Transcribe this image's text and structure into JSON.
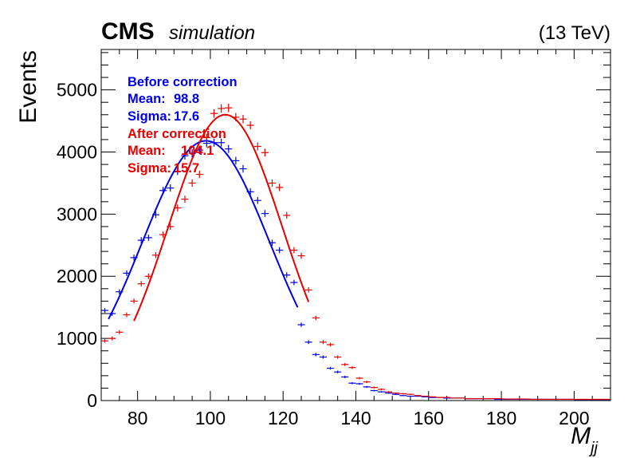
{
  "header": {
    "experiment": "CMS",
    "status": "simulation",
    "energy": "(13 TeV)"
  },
  "chart_data": {
    "type": "scatter",
    "xlabel": "M",
    "xlabel_sub": "jj",
    "ylabel": "Events",
    "xlim": [
      70,
      210
    ],
    "ylim": [
      0,
      5650
    ],
    "x_ticks": [
      80,
      100,
      120,
      140,
      160,
      180,
      200
    ],
    "y_ticks": [
      0,
      1000,
      2000,
      3000,
      4000,
      5000
    ],
    "bin_width": 2,
    "grid": false,
    "colors": {
      "before": "#0000e6",
      "after": "#e60000"
    },
    "series": [
      {
        "name": "Before correction",
        "color": "#0000e6",
        "stats": [
          {
            "label": "Before correction",
            "mean_label": "Mean:",
            "mean": "98.8",
            "sigma_label": "Sigma:",
            "sigma": "17.6"
          }
        ],
        "x": [
          71,
          73,
          75,
          77,
          79,
          81,
          83,
          85,
          87,
          89,
          91,
          93,
          95,
          97,
          99,
          101,
          103,
          105,
          107,
          109,
          111,
          113,
          115,
          117,
          119,
          121,
          123,
          125,
          127,
          129,
          131,
          133,
          135,
          137,
          139,
          141,
          143,
          145,
          147,
          149,
          151,
          153,
          155,
          157,
          159,
          161,
          163,
          165,
          167,
          169,
          171,
          173,
          175,
          177,
          179,
          181,
          183,
          185,
          187,
          189,
          191,
          193,
          195,
          197,
          199,
          201,
          203,
          205,
          207,
          209
        ],
        "y": [
          1450,
          1400,
          1750,
          2050,
          2300,
          2580,
          2620,
          2990,
          3380,
          3420,
          3690,
          3940,
          3980,
          4030,
          4140,
          4150,
          4150,
          4050,
          3860,
          3730,
          3360,
          3220,
          3010,
          2540,
          2420,
          2020,
          1900,
          1220,
          940,
          740,
          700,
          520,
          460,
          380,
          280,
          270,
          220,
          160,
          140,
          120,
          100,
          80,
          70,
          70,
          60,
          50,
          50,
          40,
          40,
          40,
          30,
          30,
          30,
          30,
          20,
          20,
          20,
          20,
          20,
          20,
          20,
          20,
          20,
          20,
          20,
          15,
          15,
          15,
          15,
          15
        ],
        "fit": {
          "mean": 98.8,
          "sigma": 17.6,
          "amp": 4180,
          "range": [
            72,
            124
          ]
        }
      },
      {
        "name": "After correction",
        "color": "#e60000",
        "stats": [
          {
            "label": "After correction",
            "mean_label": "Mean:",
            "mean": "104.1",
            "sigma_label": "Sigma:",
            "sigma": "15.7"
          }
        ],
        "x": [
          71,
          73,
          75,
          77,
          79,
          81,
          83,
          85,
          87,
          89,
          91,
          93,
          95,
          97,
          99,
          101,
          103,
          105,
          107,
          109,
          111,
          113,
          115,
          117,
          119,
          121,
          123,
          125,
          127,
          129,
          131,
          133,
          135,
          137,
          139,
          141,
          143,
          145,
          147,
          149,
          151,
          153,
          155,
          157,
          159,
          161,
          163,
          165,
          167,
          169,
          171,
          173,
          175,
          177,
          179,
          181,
          183,
          185,
          187,
          189,
          191,
          193,
          195,
          197,
          199,
          201,
          203,
          205,
          207,
          209
        ],
        "y": [
          960,
          1000,
          1100,
          1380,
          1600,
          1880,
          2000,
          2340,
          2670,
          2800,
          3100,
          3240,
          3500,
          3640,
          4230,
          4620,
          4700,
          4710,
          4560,
          4530,
          4430,
          4090,
          3990,
          3500,
          3430,
          2980,
          2420,
          2330,
          1780,
          1330,
          940,
          900,
          700,
          580,
          530,
          360,
          300,
          210,
          180,
          140,
          120,
          110,
          100,
          80,
          70,
          60,
          50,
          50,
          40,
          40,
          30,
          30,
          30,
          30,
          30,
          25,
          25,
          25,
          25,
          20,
          20,
          20,
          20,
          20,
          20,
          20,
          20,
          20,
          20,
          20
        ],
        "fit": {
          "mean": 104.1,
          "sigma": 15.7,
          "amp": 4600,
          "range": [
            79,
            127
          ]
        }
      }
    ]
  }
}
